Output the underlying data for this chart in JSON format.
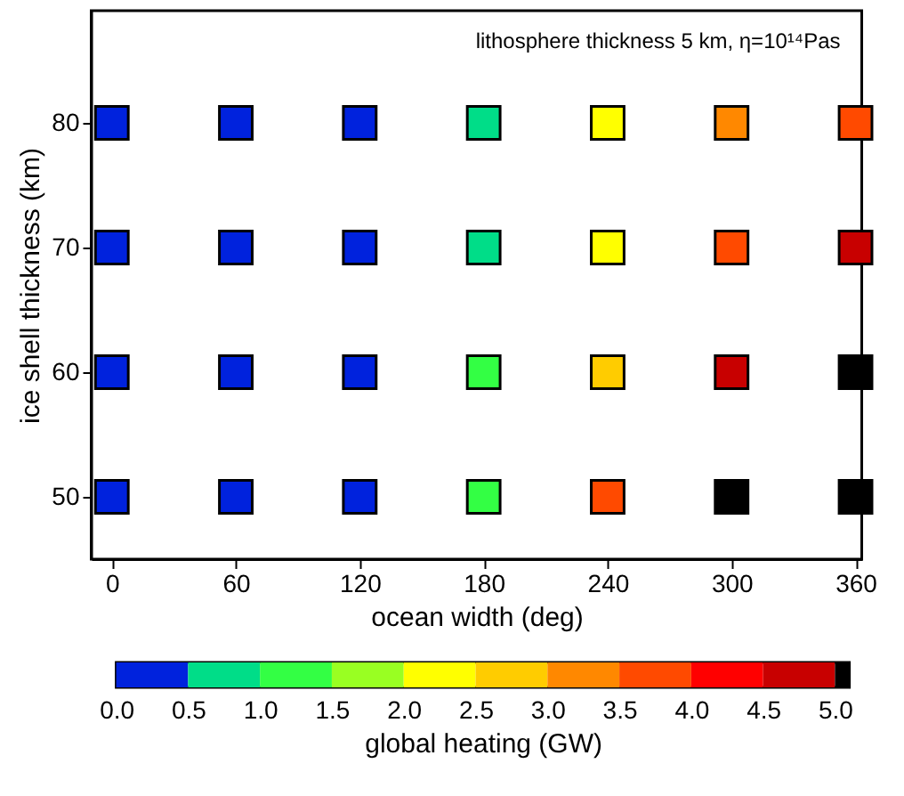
{
  "chart_data": {
    "type": "scatter",
    "annotations": [
      "lithosphere thickness 5 km, η=10¹⁴Pas"
    ],
    "xlabel": "ocean width (deg)",
    "ylabel": "ice shell thickness (km)",
    "clabel": "global heating (GW)",
    "marker": "square",
    "xlim": [
      -10,
      363
    ],
    "xticks": [
      0,
      60,
      120,
      180,
      240,
      300,
      360
    ],
    "ylim": [
      45,
      89
    ],
    "yticks": [
      50,
      60,
      70,
      80
    ],
    "clim": [
      0,
      5.1
    ],
    "cticks": [
      {
        "value": 0,
        "label": "0.0"
      },
      0.5,
      {
        "value": 1,
        "label": "1.0"
      },
      1.5,
      {
        "value": 2,
        "label": "2.0"
      },
      2.5,
      {
        "value": 3,
        "label": "3.0"
      },
      3.5,
      {
        "value": 4,
        "label": "4.0"
      },
      4.5,
      {
        "value": 5,
        "label": "5.0"
      }
    ],
    "series": [
      {
        "x": [
          0,
          60,
          120,
          180,
          240,
          300,
          360
        ],
        "values": [
          80,
          80,
          80,
          80,
          80,
          80,
          80
        ],
        "colors": [
          "#0022dd",
          "#0022dd",
          "#0022dd",
          "#00dd88",
          "#ffff00",
          "#ff8800",
          "#ff4a00"
        ]
      },
      {
        "x": [
          0,
          60,
          120,
          180,
          240,
          300,
          360
        ],
        "values": [
          70,
          70,
          70,
          70,
          70,
          70,
          70
        ],
        "colors": [
          "#0022dd",
          "#0022dd",
          "#0022dd",
          "#00dd88",
          "#ffff00",
          "#ff4a00",
          "#c80000"
        ]
      },
      {
        "x": [
          0,
          60,
          120,
          180,
          240,
          300,
          360
        ],
        "values": [
          60,
          60,
          60,
          60,
          60,
          60,
          60
        ],
        "colors": [
          "#0022dd",
          "#0022dd",
          "#0022dd",
          "#33ff44",
          "#ffcc00",
          "#c80000",
          "#000000"
        ]
      },
      {
        "x": [
          0,
          60,
          120,
          180,
          240,
          300,
          360
        ],
        "values": [
          50,
          50,
          50,
          50,
          50,
          50,
          50
        ],
        "colors": [
          "#0022dd",
          "#0022dd",
          "#0022dd",
          "#33ff44",
          "#ff4a00",
          "#000000",
          "#000000"
        ]
      }
    ]
  }
}
